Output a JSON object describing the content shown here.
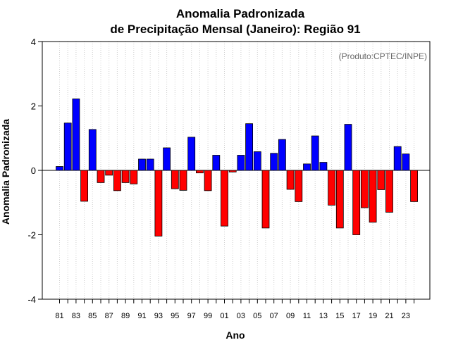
{
  "chart_data": {
    "type": "bar",
    "title_line1": "Anomalia Padronizada",
    "title_line2": "de Precipitação Mensal (Janeiro): Região 91",
    "xlabel": "Ano",
    "ylabel": "Anomalia Padronizada",
    "credit": "(Produto:CPTEC/INPE)",
    "ylim": [
      -4,
      4
    ],
    "yticks": [
      -4,
      -2,
      0,
      2,
      4
    ],
    "ytick_labels": [
      "-4",
      "-2",
      "0",
      "2",
      "4"
    ],
    "xtick_labels": [
      "81",
      "83",
      "85",
      "87",
      "89",
      "91",
      "93",
      "95",
      "97",
      "99",
      "01",
      "03",
      "05",
      "07",
      "09",
      "11",
      "13",
      "15",
      "17",
      "19",
      "21",
      "23"
    ],
    "categories": [
      "1981",
      "1982",
      "1983",
      "1984",
      "1985",
      "1986",
      "1987",
      "1988",
      "1989",
      "1990",
      "1991",
      "1992",
      "1993",
      "1994",
      "1995",
      "1996",
      "1997",
      "1998",
      "1999",
      "2000",
      "2001",
      "2002",
      "2003",
      "2004",
      "2005",
      "2006",
      "2007",
      "2008",
      "2009",
      "2010",
      "2011",
      "2012",
      "2013",
      "2014",
      "2015",
      "2016",
      "2017",
      "2018",
      "2019",
      "2020",
      "2021",
      "2022",
      "2023",
      "2024"
    ],
    "values": [
      0.12,
      1.47,
      2.22,
      -0.96,
      1.27,
      -0.38,
      -0.15,
      -0.63,
      -0.38,
      -0.42,
      0.35,
      0.35,
      -2.04,
      0.7,
      -0.57,
      -0.62,
      1.03,
      -0.08,
      -0.63,
      0.47,
      -1.73,
      -0.05,
      0.47,
      1.45,
      0.58,
      -1.79,
      0.53,
      0.96,
      -0.59,
      -0.97,
      0.2,
      1.07,
      0.25,
      -1.08,
      -1.79,
      1.43,
      -2.0,
      -1.16,
      -1.61,
      -0.6,
      -1.3,
      0.74,
      0.51,
      -0.97
    ],
    "positive_color": "#0000ff",
    "negative_color": "#ff0000"
  }
}
